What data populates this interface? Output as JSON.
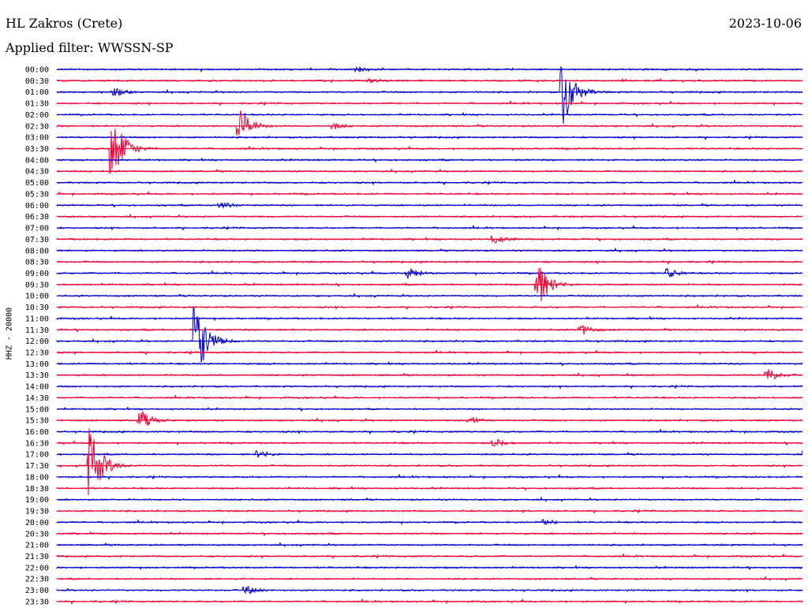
{
  "header": {
    "station": "HL Zakros (Crete)",
    "date": "2023-10-06",
    "filter": "Applied filter: WWSSN-SP"
  },
  "chart_data": {
    "type": "line",
    "title": "",
    "ylabel": "HHZ - 20000",
    "xlabel": "",
    "grid": false,
    "legend": "none",
    "row_labels": [
      "00:00",
      "00:30",
      "01:00",
      "01:30",
      "02:00",
      "02:30",
      "03:00",
      "03:30",
      "04:00",
      "04:30",
      "05:00",
      "05:30",
      "06:00",
      "06:30",
      "07:00",
      "07:30",
      "08:00",
      "08:30",
      "09:00",
      "09:30",
      "10:00",
      "10:30",
      "11:00",
      "11:30",
      "12:00",
      "12:30",
      "13:00",
      "13:30",
      "14:00",
      "14:30",
      "15:00",
      "15:30",
      "16:00",
      "16:30",
      "17:00",
      "17:30",
      "18:00",
      "18:30",
      "19:00",
      "19:30",
      "20:00",
      "20:30",
      "21:00",
      "21:30",
      "22:00",
      "22:30",
      "23:00",
      "23:30"
    ],
    "colors": {
      "even": "#0000cc",
      "odd": "#ee0033"
    },
    "events": [
      {
        "row": 0,
        "minute": 24.0,
        "amp": 3
      },
      {
        "row": 1,
        "minute": 25.0,
        "amp": 3
      },
      {
        "row": 2,
        "minute": 4.5,
        "amp": 5
      },
      {
        "row": 2,
        "minute": 40.5,
        "amp": 42
      },
      {
        "row": 5,
        "minute": 14.5,
        "amp": 20
      },
      {
        "row": 5,
        "minute": 22.0,
        "amp": 4
      },
      {
        "row": 7,
        "minute": 4.3,
        "amp": 42
      },
      {
        "row": 12,
        "minute": 13.0,
        "amp": 4
      },
      {
        "row": 15,
        "minute": 35.0,
        "amp": 5
      },
      {
        "row": 18,
        "minute": 28.0,
        "amp": 9
      },
      {
        "row": 18,
        "minute": 49.0,
        "amp": 6
      },
      {
        "row": 19,
        "minute": 38.5,
        "amp": 27
      },
      {
        "row": 23,
        "minute": 42.0,
        "amp": 6
      },
      {
        "row": 24,
        "minute": 11.0,
        "amp": 45
      },
      {
        "row": 27,
        "minute": 57.0,
        "amp": 8
      },
      {
        "row": 31,
        "minute": 6.5,
        "amp": 12
      },
      {
        "row": 31,
        "minute": 33.0,
        "amp": 4
      },
      {
        "row": 33,
        "minute": 35.0,
        "amp": 5
      },
      {
        "row": 34,
        "minute": 16.0,
        "amp": 5
      },
      {
        "row": 34,
        "minute": 60.0,
        "amp": 5
      },
      {
        "row": 35,
        "minute": 2.5,
        "amp": 48
      },
      {
        "row": 40,
        "minute": 39.0,
        "amp": 4
      },
      {
        "row": 46,
        "minute": 15.0,
        "amp": 5
      }
    ]
  }
}
